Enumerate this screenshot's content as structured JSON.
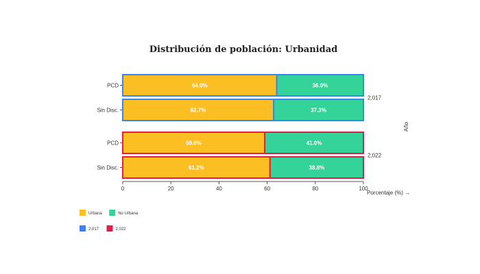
{
  "chart_data": {
    "type": "bar",
    "orientation": "horizontal",
    "stacked": true,
    "title": "Distribución de población: Urbanidad",
    "xlabel": "Porcentaje (%) →",
    "ylabel": "Año",
    "xlim": [
      0,
      100
    ],
    "xticks": [
      0,
      20,
      40,
      60,
      80,
      100
    ],
    "grid": false,
    "categories": [
      "PCD",
      "Sin Disc."
    ],
    "colors": {
      "Urbana": "#fbbf24",
      "No Urbana": "#34d399"
    },
    "groups": [
      {
        "year": "2,017",
        "border_color": "#3b82f6",
        "rows": [
          {
            "category": "PCD",
            "Urbana": 64.0,
            "No Urbana": 36.0,
            "labels": [
              "64.0%",
              "36.0%"
            ]
          },
          {
            "category": "Sin Disc.",
            "Urbana": 62.7,
            "No Urbana": 37.3,
            "labels": [
              "62.7%",
              "37.3%"
            ]
          }
        ]
      },
      {
        "year": "2,022",
        "border_color": "#e11d48",
        "rows": [
          {
            "category": "PCD",
            "Urbana": 59.0,
            "No Urbana": 41.0,
            "labels": [
              "59.0%",
              "41.0%"
            ]
          },
          {
            "category": "Sin Disc.",
            "Urbana": 61.2,
            "No Urbana": 38.8,
            "labels": [
              "61.2%",
              "38.8%"
            ]
          }
        ]
      }
    ],
    "legend": {
      "placement": "bottom-left",
      "fill_items": [
        {
          "label": "Urbana",
          "color": "#fbbf24"
        },
        {
          "label": "No Urbana",
          "color": "#34d399"
        }
      ],
      "stroke_items": [
        {
          "label": "2,017",
          "color": "#3b82f6"
        },
        {
          "label": "2,022",
          "color": "#e11d48"
        }
      ]
    }
  }
}
